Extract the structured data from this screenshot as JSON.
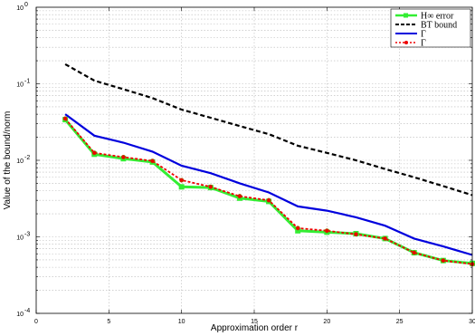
{
  "chart_data": {
    "type": "line",
    "xlabel": "Approximation order r",
    "ylabel": "Value of the bound/norm",
    "xlim": [
      0,
      30
    ],
    "ylim": [
      0.0001,
      1
    ],
    "yscale": "log",
    "grid": true,
    "legend_position": "top-right",
    "x_ticks": [
      "0",
      "5",
      "10",
      "15",
      "20",
      "25",
      "30"
    ],
    "y_ticks": [
      {
        "base": "10",
        "exp": "0"
      },
      {
        "base": "10",
        "exp": "-1"
      },
      {
        "base": "10",
        "exp": "-2"
      },
      {
        "base": "10",
        "exp": "-3"
      },
      {
        "base": "10",
        "exp": "-4"
      }
    ],
    "x": [
      2,
      4,
      6,
      8,
      10,
      12,
      14,
      16,
      18,
      20,
      22,
      24,
      26,
      28,
      30
    ],
    "series": [
      {
        "name": "H∞ error",
        "color": "#33ee33",
        "style": "solid-square-markers",
        "values": [
          0.034,
          0.012,
          0.0105,
          0.0095,
          0.0045,
          0.0044,
          0.0032,
          0.0029,
          0.0012,
          0.00115,
          0.0011,
          0.00095,
          0.00062,
          0.00049,
          0.00045
        ]
      },
      {
        "name": "BT bound",
        "color": "#000000",
        "style": "dashed",
        "values": [
          0.18,
          0.11,
          0.085,
          0.065,
          0.046,
          0.036,
          0.028,
          0.022,
          0.0155,
          0.0125,
          0.01,
          0.0077,
          0.006,
          0.0046,
          0.0035
        ]
      },
      {
        "name": "Γ",
        "color": "#0000dd",
        "style": "solid",
        "values": [
          0.04,
          0.021,
          0.017,
          0.013,
          0.0085,
          0.0068,
          0.005,
          0.0038,
          0.0025,
          0.0022,
          0.0018,
          0.0014,
          0.00095,
          0.00075,
          0.00058
        ]
      },
      {
        "name": "Γ",
        "color": "#ee0000",
        "style": "dotted-circle-markers",
        "values": [
          0.035,
          0.0125,
          0.011,
          0.0098,
          0.0055,
          0.0045,
          0.0034,
          0.003,
          0.0013,
          0.0012,
          0.00108,
          0.00095,
          0.00062,
          0.00049,
          0.00044
        ]
      }
    ]
  }
}
